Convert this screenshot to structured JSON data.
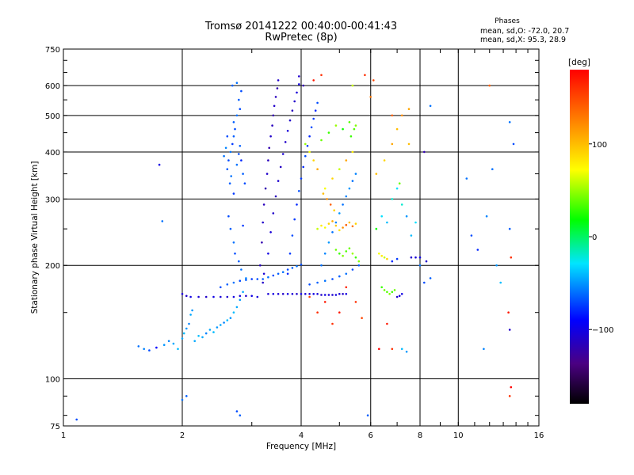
{
  "chart_data": {
    "type": "scatter",
    "title": "Tromsø 20141222 00:40:00-00:41:43",
    "subtitle": "RwPretec (8p)",
    "xlabel": "Frequency [MHz]",
    "ylabel": "Stationary phase Virtual Height [km]",
    "xscale": "log",
    "yscale": "log",
    "xlim": [
      1,
      16
    ],
    "ylim": [
      75,
      750
    ],
    "grid": true,
    "x_ticks": [
      {
        "v": 1,
        "label": "1"
      },
      {
        "v": 2,
        "label": "2"
      },
      {
        "v": 4,
        "label": "4"
      },
      {
        "v": 6,
        "label": "6"
      },
      {
        "v": 8,
        "label": "8"
      },
      {
        "v": 10,
        "label": "10"
      },
      {
        "v": 16,
        "label": "16"
      }
    ],
    "y_ticks": [
      {
        "v": 75,
        "label": "75"
      },
      {
        "v": 100,
        "label": "100"
      },
      {
        "v": 200,
        "label": "200"
      },
      {
        "v": 300,
        "label": "300"
      },
      {
        "v": 400,
        "label": "400"
      },
      {
        "v": 500,
        "label": "500"
      },
      {
        "v": 600,
        "label": "600"
      },
      {
        "v": 750,
        "label": "750"
      }
    ],
    "phases": {
      "heading": "Phases",
      "o_line": "mean, sd,O: -72.0, 20.7",
      "x_line": "mean, sd,X:  95.3, 28.9"
    },
    "colorbar": {
      "label": "[deg]",
      "range": [
        -180,
        180
      ],
      "ticks": [
        {
          "v": 100,
          "label": "100"
        },
        {
          "v": 0,
          "label": "0"
        },
        {
          "v": -100,
          "label": "−100"
        }
      ]
    },
    "points": [
      [
        1.08,
        78,
        -70
      ],
      [
        1.55,
        122,
        -60
      ],
      [
        1.6,
        120,
        -55
      ],
      [
        1.65,
        119,
        -70
      ],
      [
        1.72,
        121,
        -90
      ],
      [
        1.75,
        370,
        -100
      ],
      [
        1.78,
        262,
        -60
      ],
      [
        1.8,
        123,
        -50
      ],
      [
        1.85,
        126,
        -55
      ],
      [
        1.9,
        124,
        -45
      ],
      [
        1.95,
        120,
        -40
      ],
      [
        2.0,
        128,
        -45
      ],
      [
        2.02,
        132,
        -40
      ],
      [
        2.05,
        136,
        -50
      ],
      [
        2.08,
        140,
        -55
      ],
      [
        2.1,
        148,
        -45
      ],
      [
        2.12,
        152,
        -50
      ],
      [
        2.15,
        126,
        -45
      ],
      [
        2.2,
        130,
        -40
      ],
      [
        2.25,
        129,
        -45
      ],
      [
        2.3,
        132,
        -55
      ],
      [
        2.35,
        135,
        -45
      ],
      [
        2.4,
        133,
        -40
      ],
      [
        2.45,
        137,
        -50
      ],
      [
        2.5,
        139,
        -45
      ],
      [
        2.55,
        141,
        -55
      ],
      [
        2.6,
        143,
        -40
      ],
      [
        2.65,
        145,
        -50
      ],
      [
        2.7,
        150,
        -40
      ],
      [
        2.75,
        155,
        -45
      ],
      [
        2.8,
        162,
        -50
      ],
      [
        2.85,
        170,
        -45
      ],
      [
        2.9,
        185,
        -55
      ],
      [
        2.0,
        168,
        -105
      ],
      [
        2.05,
        166,
        -110
      ],
      [
        2.1,
        165,
        -100
      ],
      [
        2.2,
        165,
        -105
      ],
      [
        2.3,
        165,
        -110
      ],
      [
        2.4,
        165,
        -100
      ],
      [
        2.5,
        165,
        -105
      ],
      [
        2.6,
        165,
        -108
      ],
      [
        2.7,
        165,
        -102
      ],
      [
        2.8,
        166,
        -105
      ],
      [
        2.9,
        166,
        -110
      ],
      [
        3.0,
        166,
        -100
      ],
      [
        3.1,
        165,
        -104
      ],
      [
        2.5,
        175,
        -70
      ],
      [
        2.6,
        178,
        -65
      ],
      [
        2.7,
        180,
        -60
      ],
      [
        2.8,
        182,
        -70
      ],
      [
        2.9,
        183,
        -65
      ],
      [
        3.0,
        184,
        -75
      ],
      [
        3.1,
        184,
        -70
      ],
      [
        3.2,
        184,
        -65
      ],
      [
        3.3,
        186,
        -60
      ],
      [
        3.4,
        188,
        -70
      ],
      [
        3.5,
        190,
        -65
      ],
      [
        3.6,
        192,
        -60
      ],
      [
        3.7,
        195,
        -70
      ],
      [
        3.8,
        197,
        -65
      ],
      [
        3.9,
        199,
        -60
      ],
      [
        4.0,
        201,
        -70
      ],
      [
        3.3,
        168,
        -105
      ],
      [
        3.4,
        168,
        -100
      ],
      [
        3.5,
        168,
        -105
      ],
      [
        3.6,
        168,
        -110
      ],
      [
        3.7,
        168,
        -100
      ],
      [
        3.8,
        168,
        -105
      ],
      [
        3.9,
        168,
        -110
      ],
      [
        4.0,
        168,
        -100
      ],
      [
        4.1,
        168,
        -105
      ],
      [
        4.2,
        168,
        -110
      ],
      [
        4.3,
        168,
        -100
      ],
      [
        4.4,
        168,
        -105
      ],
      [
        4.5,
        167,
        -110
      ],
      [
        4.6,
        167,
        -100
      ],
      [
        4.7,
        167,
        -105
      ],
      [
        4.8,
        167,
        -108
      ],
      [
        4.9,
        167,
        -102
      ],
      [
        5.0,
        168,
        -106
      ],
      [
        5.1,
        168,
        -110
      ],
      [
        5.2,
        168,
        -100
      ],
      [
        4.2,
        178,
        -70
      ],
      [
        4.4,
        180,
        -65
      ],
      [
        4.6,
        182,
        -60
      ],
      [
        4.8,
        184,
        -70
      ],
      [
        5.0,
        187,
        -65
      ],
      [
        5.2,
        190,
        -60
      ],
      [
        5.4,
        195,
        -70
      ],
      [
        5.6,
        200,
        -65
      ],
      [
        2.6,
        360,
        -65
      ],
      [
        2.62,
        380,
        -70
      ],
      [
        2.65,
        400,
        -60
      ],
      [
        2.68,
        420,
        -75
      ],
      [
        2.7,
        440,
        -65
      ],
      [
        2.72,
        460,
        -70
      ],
      [
        2.66,
        345,
        -60
      ],
      [
        2.64,
        330,
        -65
      ],
      [
        2.7,
        310,
        -75
      ],
      [
        2.75,
        370,
        -60
      ],
      [
        2.78,
        395,
        -70
      ],
      [
        2.8,
        415,
        -65
      ],
      [
        2.82,
        380,
        -80
      ],
      [
        2.85,
        350,
        -65
      ],
      [
        2.88,
        330,
        -70
      ],
      [
        2.58,
        410,
        -55
      ],
      [
        2.55,
        390,
        -60
      ],
      [
        2.6,
        440,
        -70
      ],
      [
        2.7,
        480,
        -65
      ],
      [
        2.75,
        500,
        -60
      ],
      [
        2.8,
        520,
        -70
      ],
      [
        2.78,
        550,
        -65
      ],
      [
        2.82,
        580,
        -70
      ],
      [
        2.68,
        600,
        -65
      ],
      [
        2.75,
        610,
        -60
      ],
      [
        2.62,
        270,
        -70
      ],
      [
        2.65,
        250,
        -65
      ],
      [
        2.7,
        230,
        -60
      ],
      [
        2.72,
        215,
        -70
      ],
      [
        2.78,
        205,
        -65
      ],
      [
        2.82,
        195,
        -60
      ],
      [
        2.85,
        255,
        -75
      ],
      [
        3.15,
        200,
        -115
      ],
      [
        3.18,
        230,
        -120
      ],
      [
        3.2,
        260,
        -110
      ],
      [
        3.22,
        290,
        -115
      ],
      [
        3.25,
        320,
        -120
      ],
      [
        3.28,
        350,
        -110
      ],
      [
        3.3,
        380,
        -115
      ],
      [
        3.32,
        410,
        -120
      ],
      [
        3.35,
        440,
        -110
      ],
      [
        3.38,
        470,
        -115
      ],
      [
        3.4,
        500,
        -120
      ],
      [
        3.42,
        530,
        -110
      ],
      [
        3.45,
        560,
        -115
      ],
      [
        3.48,
        590,
        -120
      ],
      [
        3.5,
        620,
        -110
      ],
      [
        3.2,
        180,
        -110
      ],
      [
        3.22,
        190,
        -105
      ],
      [
        3.3,
        215,
        -100
      ],
      [
        3.35,
        245,
        -105
      ],
      [
        3.4,
        275,
        -110
      ],
      [
        3.45,
        305,
        -115
      ],
      [
        3.5,
        335,
        -108
      ],
      [
        3.55,
        365,
        -112
      ],
      [
        3.6,
        395,
        -106
      ],
      [
        3.65,
        425,
        -110
      ],
      [
        3.7,
        455,
        -104
      ],
      [
        3.75,
        485,
        -110
      ],
      [
        3.8,
        515,
        -115
      ],
      [
        3.85,
        545,
        -110
      ],
      [
        3.9,
        575,
        -105
      ],
      [
        3.95,
        605,
        -100
      ],
      [
        3.7,
        190,
        -80
      ],
      [
        3.75,
        215,
        -75
      ],
      [
        3.8,
        240,
        -70
      ],
      [
        3.85,
        265,
        -75
      ],
      [
        3.9,
        290,
        -80
      ],
      [
        3.95,
        315,
        -70
      ],
      [
        4.0,
        340,
        -75
      ],
      [
        4.05,
        365,
        -80
      ],
      [
        4.1,
        390,
        -70
      ],
      [
        4.15,
        415,
        -75
      ],
      [
        4.2,
        440,
        -80
      ],
      [
        4.25,
        465,
        -70
      ],
      [
        4.3,
        490,
        -75
      ],
      [
        4.35,
        515,
        -80
      ],
      [
        4.4,
        540,
        -70
      ],
      [
        4.5,
        200,
        -60
      ],
      [
        4.6,
        215,
        -55
      ],
      [
        4.7,
        230,
        -50
      ],
      [
        4.8,
        245,
        -60
      ],
      [
        4.9,
        260,
        -55
      ],
      [
        5.0,
        275,
        -50
      ],
      [
        5.1,
        290,
        -60
      ],
      [
        5.2,
        305,
        -55
      ],
      [
        5.3,
        320,
        -50
      ],
      [
        5.4,
        335,
        -60
      ],
      [
        5.5,
        350,
        -55
      ],
      [
        4.4,
        250,
        60
      ],
      [
        4.5,
        255,
        80
      ],
      [
        4.6,
        252,
        70
      ],
      [
        4.7,
        258,
        90
      ],
      [
        4.8,
        262,
        110
      ],
      [
        4.9,
        255,
        95
      ],
      [
        5.0,
        248,
        85
      ],
      [
        5.1,
        252,
        120
      ],
      [
        5.2,
        256,
        140
      ],
      [
        5.3,
        260,
        100
      ],
      [
        5.4,
        254,
        130
      ],
      [
        5.5,
        258,
        90
      ],
      [
        4.6,
        320,
        70
      ],
      [
        4.8,
        340,
        90
      ],
      [
        5.0,
        360,
        60
      ],
      [
        5.2,
        380,
        110
      ],
      [
        5.4,
        400,
        80
      ],
      [
        4.9,
        220,
        40
      ],
      [
        5.0,
        215,
        30
      ],
      [
        5.1,
        212,
        45
      ],
      [
        5.2,
        218,
        35
      ],
      [
        5.3,
        222,
        40
      ],
      [
        5.4,
        215,
        50
      ],
      [
        5.5,
        210,
        30
      ],
      [
        5.6,
        205,
        45
      ],
      [
        4.5,
        430,
        40
      ],
      [
        4.7,
        450,
        30
      ],
      [
        4.9,
        470,
        50
      ],
      [
        5.1,
        460,
        20
      ],
      [
        5.3,
        480,
        35
      ],
      [
        5.5,
        470,
        45
      ],
      [
        5.35,
        440,
        30
      ],
      [
        5.45,
        460,
        35
      ],
      [
        4.1,
        420,
        50
      ],
      [
        4.2,
        400,
        70
      ],
      [
        4.3,
        380,
        90
      ],
      [
        4.4,
        360,
        110
      ],
      [
        4.55,
        310,
        100
      ],
      [
        4.65,
        300,
        120
      ],
      [
        4.75,
        290,
        140
      ],
      [
        4.85,
        280,
        90
      ],
      [
        6.4,
        175,
        30
      ],
      [
        6.5,
        172,
        40
      ],
      [
        6.6,
        170,
        35
      ],
      [
        6.7,
        168,
        45
      ],
      [
        6.8,
        170,
        30
      ],
      [
        6.9,
        172,
        40
      ],
      [
        7.0,
        165,
        -110
      ],
      [
        7.1,
        166,
        -105
      ],
      [
        7.2,
        168,
        -100
      ],
      [
        6.3,
        215,
        70
      ],
      [
        6.4,
        212,
        80
      ],
      [
        6.5,
        210,
        60
      ],
      [
        6.6,
        208,
        90
      ],
      [
        6.8,
        205,
        -80
      ],
      [
        7.0,
        208,
        -75
      ],
      [
        7.6,
        210,
        -110
      ],
      [
        7.8,
        210,
        -105
      ],
      [
        8.0,
        210,
        -100
      ],
      [
        8.3,
        205,
        -110
      ],
      [
        6.2,
        250,
        20
      ],
      [
        6.4,
        270,
        -30
      ],
      [
        6.6,
        260,
        -40
      ],
      [
        6.8,
        300,
        -20
      ],
      [
        7.0,
        320,
        -30
      ],
      [
        7.2,
        290,
        -20
      ],
      [
        7.4,
        270,
        -50
      ],
      [
        7.6,
        240,
        -40
      ],
      [
        7.8,
        260,
        -30
      ],
      [
        8.0,
        200,
        -60
      ],
      [
        8.2,
        180,
        -70
      ],
      [
        8.5,
        185,
        -65
      ],
      [
        6.2,
        350,
        100
      ],
      [
        6.5,
        380,
        90
      ],
      [
        6.8,
        420,
        110
      ],
      [
        7.0,
        460,
        100
      ],
      [
        7.2,
        500,
        120
      ],
      [
        6.0,
        560,
        130
      ],
      [
        6.1,
        620,
        150
      ],
      [
        5.8,
        640,
        160
      ],
      [
        6.8,
        500,
        140
      ],
      [
        7.5,
        520,
        110
      ],
      [
        8.5,
        530,
        -60
      ],
      [
        8.2,
        400,
        -120
      ],
      [
        10.5,
        340,
        -60
      ],
      [
        10.8,
        240,
        -70
      ],
      [
        11.2,
        220,
        -80
      ],
      [
        12.0,
        600,
        140
      ],
      [
        13.5,
        480,
        -60
      ],
      [
        13.8,
        420,
        -70
      ],
      [
        13.5,
        250,
        -65
      ],
      [
        13.6,
        210,
        160
      ],
      [
        13.4,
        150,
        170
      ],
      [
        13.5,
        135,
        -110
      ],
      [
        13.6,
        95,
        180
      ],
      [
        13.5,
        90,
        160
      ],
      [
        12.5,
        200,
        -50
      ],
      [
        12.8,
        180,
        -40
      ],
      [
        11.8,
        270,
        -55
      ],
      [
        12.2,
        360,
        -60
      ],
      [
        11.6,
        120,
        -55
      ],
      [
        7.2,
        120,
        -40
      ],
      [
        7.4,
        118,
        -50
      ],
      [
        7.5,
        420,
        100
      ],
      [
        7.1,
        330,
        40
      ],
      [
        6.6,
        140,
        170
      ],
      [
        6.8,
        120,
        160
      ],
      [
        5.9,
        80,
        -65
      ],
      [
        5.7,
        145,
        150
      ],
      [
        5.5,
        160,
        160
      ],
      [
        5.2,
        175,
        165
      ],
      [
        5.0,
        150,
        170
      ],
      [
        4.8,
        140,
        160
      ],
      [
        4.6,
        160,
        170
      ],
      [
        4.4,
        150,
        160
      ],
      [
        4.2,
        165,
        150
      ],
      [
        2.0,
        88,
        -60
      ],
      [
        2.05,
        90,
        -65
      ],
      [
        2.75,
        82,
        -70
      ],
      [
        2.8,
        80,
        -65
      ],
      [
        3.95,
        635,
        -110
      ],
      [
        4.05,
        600,
        -120
      ],
      [
        4.3,
        620,
        170
      ],
      [
        4.5,
        640,
        160
      ],
      [
        5.4,
        600,
        60
      ],
      [
        6.3,
        120,
        180
      ]
    ]
  }
}
